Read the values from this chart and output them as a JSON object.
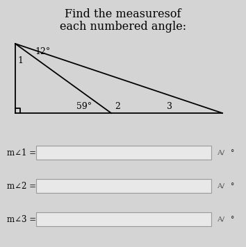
{
  "title_line1": "Find the measuresof",
  "title_line2": "each numbered angle:",
  "bg_color": "#d4d4d4",
  "title_font": "DejaVu Serif",
  "title_fontsize": 11.5,
  "angle_12_label": "12°",
  "angle_59_label": "59°",
  "label_1": "1",
  "label_2": "2",
  "label_3": "3",
  "input_labels": [
    "m∠1 =",
    "m∠2 =",
    "m∠3 ="
  ],
  "input_box_color": "#e8e8e8",
  "input_border_color": "#999999",
  "suffix": "°",
  "Ay_label": "A/",
  "line_color": "#000000",
  "diagram_label_fontsize": 9,
  "input_label_fontsize": 8.5
}
